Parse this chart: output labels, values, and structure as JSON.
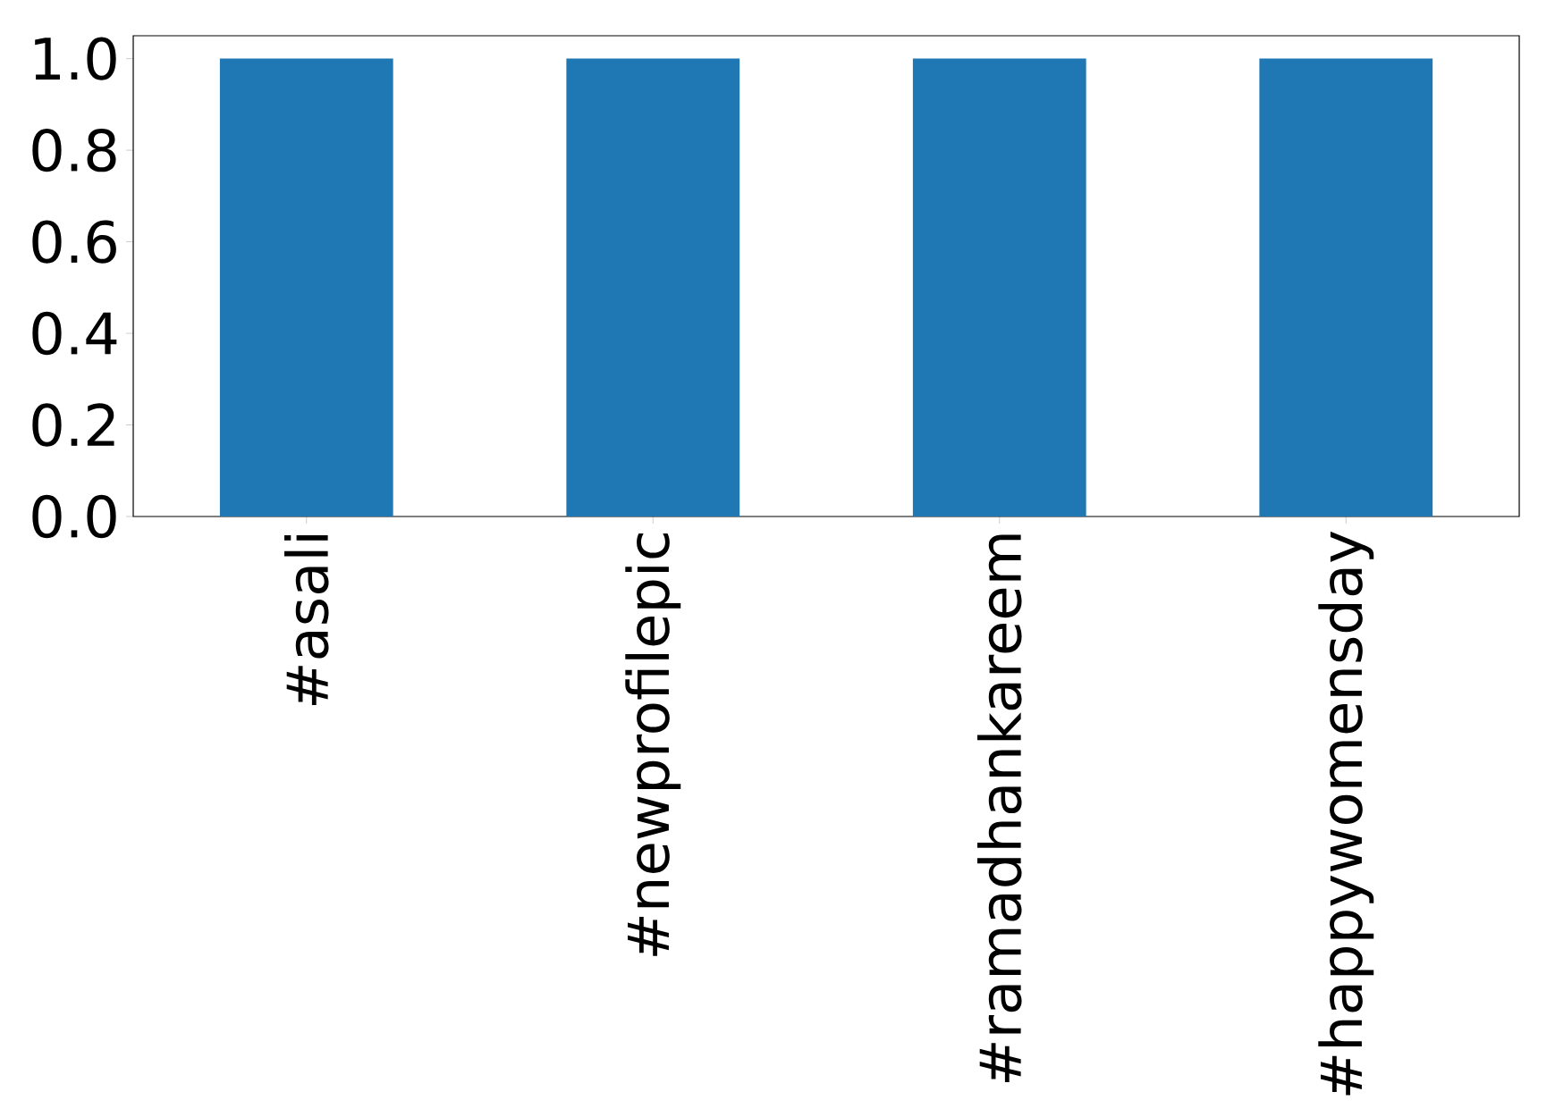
{
  "chart_data": {
    "type": "bar",
    "categories": [
      "#asali",
      "#newprofilepic",
      "#ramadhankareem",
      "#happywomensday"
    ],
    "values": [
      1,
      1,
      1,
      1
    ],
    "color": "#1f77b4",
    "ylim": [
      0,
      1.05
    ],
    "yticks": [
      {
        "value": 0,
        "label": "0.0"
      },
      {
        "value": 0.2,
        "label": "0.2"
      },
      {
        "value": 0.4,
        "label": "0.4"
      },
      {
        "value": 0.6,
        "label": "0.6"
      },
      {
        "value": 0.8,
        "label": "0.8"
      },
      {
        "value": 1.0,
        "label": "1.0"
      }
    ]
  }
}
